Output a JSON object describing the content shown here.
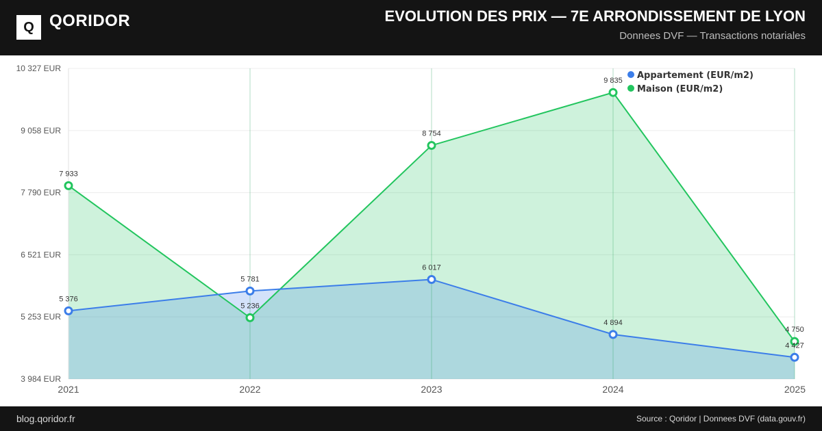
{
  "header": {
    "logo_letter": "Q",
    "brand": "QORIDOR",
    "title": "EVOLUTION DES PRIX — 7E ARRONDISSEMENT DE LYON",
    "subtitle": "Donnees DVF — Transactions notariales"
  },
  "footer": {
    "site": "blog.qoridor.fr",
    "source": "Source : Qoridor | Donnees DVF (data.gouv.fr)"
  },
  "chart_data": {
    "type": "area",
    "categories": [
      "2021",
      "2022",
      "2023",
      "2024",
      "2025"
    ],
    "series": [
      {
        "name": "Appartement (EUR/m2)",
        "values": [
          5376,
          5781,
          6017,
          4894,
          4427
        ],
        "labels": [
          "5 376",
          "5 781",
          "6 017",
          "4 894",
          "4 427"
        ],
        "color": "#3b7de9"
      },
      {
        "name": "Maison (EUR/m2)",
        "values": [
          7933,
          5236,
          8754,
          9835,
          4750
        ],
        "labels": [
          "7 933",
          "5 236",
          "8 754",
          "9 835",
          "4 750"
        ],
        "color": "#22c55e"
      }
    ],
    "yticks": [
      10327,
      9058,
      7790,
      6521,
      5253,
      3984
    ],
    "ytick_labels": [
      "10 327 EUR",
      "9 058 EUR",
      "7 790 EUR",
      "6 521 EUR",
      "5 253 EUR",
      "3 984 EUR"
    ],
    "ylim": [
      3984,
      10327
    ],
    "grid": true,
    "legend": "top-right"
  }
}
